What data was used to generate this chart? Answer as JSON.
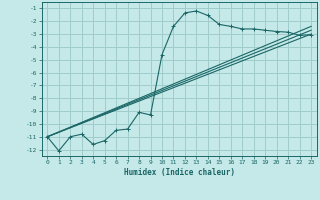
{
  "xlabel": "Humidex (Indice chaleur)",
  "background_color": "#c5e8e8",
  "grid_color": "#a0cccc",
  "line_color": "#1a6666",
  "xlim": [
    -0.5,
    23.5
  ],
  "ylim": [
    -12.5,
    -0.5
  ],
  "yticks": [
    -1,
    -2,
    -3,
    -4,
    -5,
    -6,
    -7,
    -8,
    -9,
    -10,
    -11,
    -12
  ],
  "xticks": [
    0,
    1,
    2,
    3,
    4,
    5,
    6,
    7,
    8,
    9,
    10,
    11,
    12,
    13,
    14,
    15,
    16,
    17,
    18,
    19,
    20,
    21,
    22,
    23
  ],
  "curve1_x": [
    0,
    1,
    2,
    3,
    4,
    5,
    6,
    7,
    8,
    9,
    10,
    11,
    12,
    13,
    14,
    15,
    16,
    17,
    18,
    19,
    20,
    21,
    22,
    23
  ],
  "curve1_y": [
    -11.0,
    -12.1,
    -11.0,
    -10.8,
    -11.6,
    -11.3,
    -10.5,
    -10.4,
    -9.1,
    -9.3,
    -4.6,
    -2.4,
    -1.35,
    -1.2,
    -1.55,
    -2.25,
    -2.4,
    -2.6,
    -2.6,
    -2.7,
    -2.8,
    -2.85,
    -3.1,
    -3.05
  ],
  "line1_x": [
    0,
    23
  ],
  "line1_y": [
    -11.0,
    -3.0
  ],
  "line2_x": [
    0,
    23
  ],
  "line2_y": [
    -11.0,
    -2.7
  ],
  "line3_x": [
    0,
    23
  ],
  "line3_y": [
    -11.0,
    -2.4
  ]
}
